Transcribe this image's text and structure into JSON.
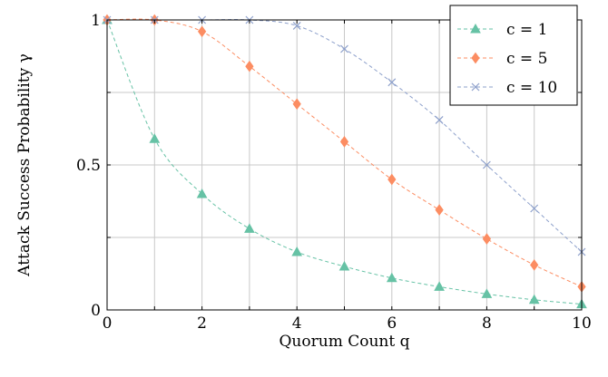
{
  "chart_data": {
    "type": "line",
    "xlabel": "Quorum Count q",
    "ylabel": "Attack Success Probability γ",
    "xlim": [
      0,
      10
    ],
    "ylim": [
      0,
      1
    ],
    "x_ticks": [
      "0",
      "2",
      "4",
      "6",
      "8",
      "10"
    ],
    "y_ticks": [
      "0",
      "0.5",
      "1"
    ],
    "grid": true,
    "legend_position": "top-right",
    "x": [
      0,
      1,
      2,
      3,
      4,
      5,
      6,
      7,
      8,
      9,
      10
    ],
    "series": [
      {
        "name": "c = 1",
        "marker": "triangle",
        "color": "#66c2a5",
        "values": [
          1.0,
          0.59,
          0.4,
          0.28,
          0.2,
          0.15,
          0.11,
          0.08,
          0.055,
          0.035,
          0.02
        ]
      },
      {
        "name": "c = 5",
        "marker": "diamond",
        "color": "#fc8d62",
        "values": [
          1.0,
          1.0,
          0.96,
          0.84,
          0.71,
          0.58,
          0.45,
          0.345,
          0.245,
          0.155,
          0.08
        ]
      },
      {
        "name": "c = 10",
        "marker": "cross",
        "color": "#8da0cb",
        "values": [
          1.0,
          1.0,
          1.0,
          1.0,
          0.98,
          0.9,
          0.785,
          0.655,
          0.5,
          0.35,
          0.2
        ]
      }
    ]
  }
}
